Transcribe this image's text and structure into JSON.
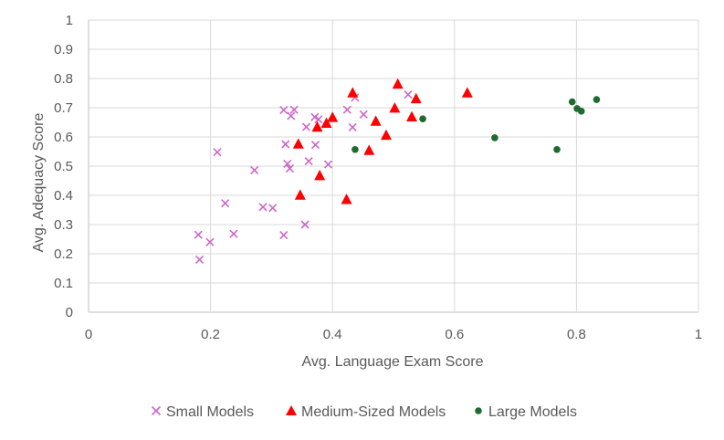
{
  "chart_data": {
    "type": "scatter",
    "title": "",
    "xlabel": "Avg. Language Exam Score",
    "ylabel": "Avg. Adequacy Score",
    "xlim": [
      0,
      1
    ],
    "ylim": [
      0,
      1
    ],
    "x_ticks": [
      "0",
      "0.2",
      "0.4",
      "0.6",
      "0.8",
      "1"
    ],
    "y_ticks": [
      "0",
      "0.1",
      "0.2",
      "0.3",
      "0.4",
      "0.5",
      "0.6",
      "0.7",
      "0.8",
      "0.9",
      "1"
    ],
    "grid": "vertical-and-horizontal",
    "legend_position": "bottom",
    "series": [
      {
        "name": "Small Models",
        "marker": "x",
        "color": "#cc66cc",
        "points": [
          [
            0.18,
            0.265
          ],
          [
            0.182,
            0.18
          ],
          [
            0.199,
            0.24
          ],
          [
            0.211,
            0.548
          ],
          [
            0.224,
            0.373
          ],
          [
            0.238,
            0.268
          ],
          [
            0.272,
            0.486
          ],
          [
            0.286,
            0.36
          ],
          [
            0.302,
            0.357
          ],
          [
            0.32,
            0.264
          ],
          [
            0.32,
            0.692
          ],
          [
            0.323,
            0.575
          ],
          [
            0.326,
            0.508
          ],
          [
            0.33,
            0.492
          ],
          [
            0.332,
            0.672
          ],
          [
            0.337,
            0.693
          ],
          [
            0.355,
            0.3
          ],
          [
            0.357,
            0.634
          ],
          [
            0.361,
            0.517
          ],
          [
            0.371,
            0.668
          ],
          [
            0.372,
            0.573
          ],
          [
            0.377,
            0.66
          ],
          [
            0.393,
            0.506
          ],
          [
            0.424,
            0.693
          ],
          [
            0.433,
            0.633
          ],
          [
            0.437,
            0.735
          ],
          [
            0.451,
            0.677
          ],
          [
            0.524,
            0.745
          ]
        ]
      },
      {
        "name": "Medium-Sized Models",
        "marker": "triangle",
        "color": "#ff0000",
        "points": [
          [
            0.344,
            0.577
          ],
          [
            0.347,
            0.402
          ],
          [
            0.375,
            0.635
          ],
          [
            0.379,
            0.469
          ],
          [
            0.39,
            0.648
          ],
          [
            0.4,
            0.668
          ],
          [
            0.423,
            0.387
          ],
          [
            0.433,
            0.752
          ],
          [
            0.46,
            0.555
          ],
          [
            0.471,
            0.655
          ],
          [
            0.488,
            0.607
          ],
          [
            0.502,
            0.7
          ],
          [
            0.507,
            0.782
          ],
          [
            0.53,
            0.67
          ],
          [
            0.537,
            0.732
          ],
          [
            0.621,
            0.752
          ]
        ]
      },
      {
        "name": "Large Models",
        "marker": "circle",
        "color": "#1e6b2e",
        "points": [
          [
            0.437,
            0.557
          ],
          [
            0.548,
            0.662
          ],
          [
            0.666,
            0.597
          ],
          [
            0.768,
            0.557
          ],
          [
            0.793,
            0.72
          ],
          [
            0.801,
            0.697
          ],
          [
            0.808,
            0.688
          ],
          [
            0.833,
            0.728
          ]
        ]
      }
    ]
  }
}
